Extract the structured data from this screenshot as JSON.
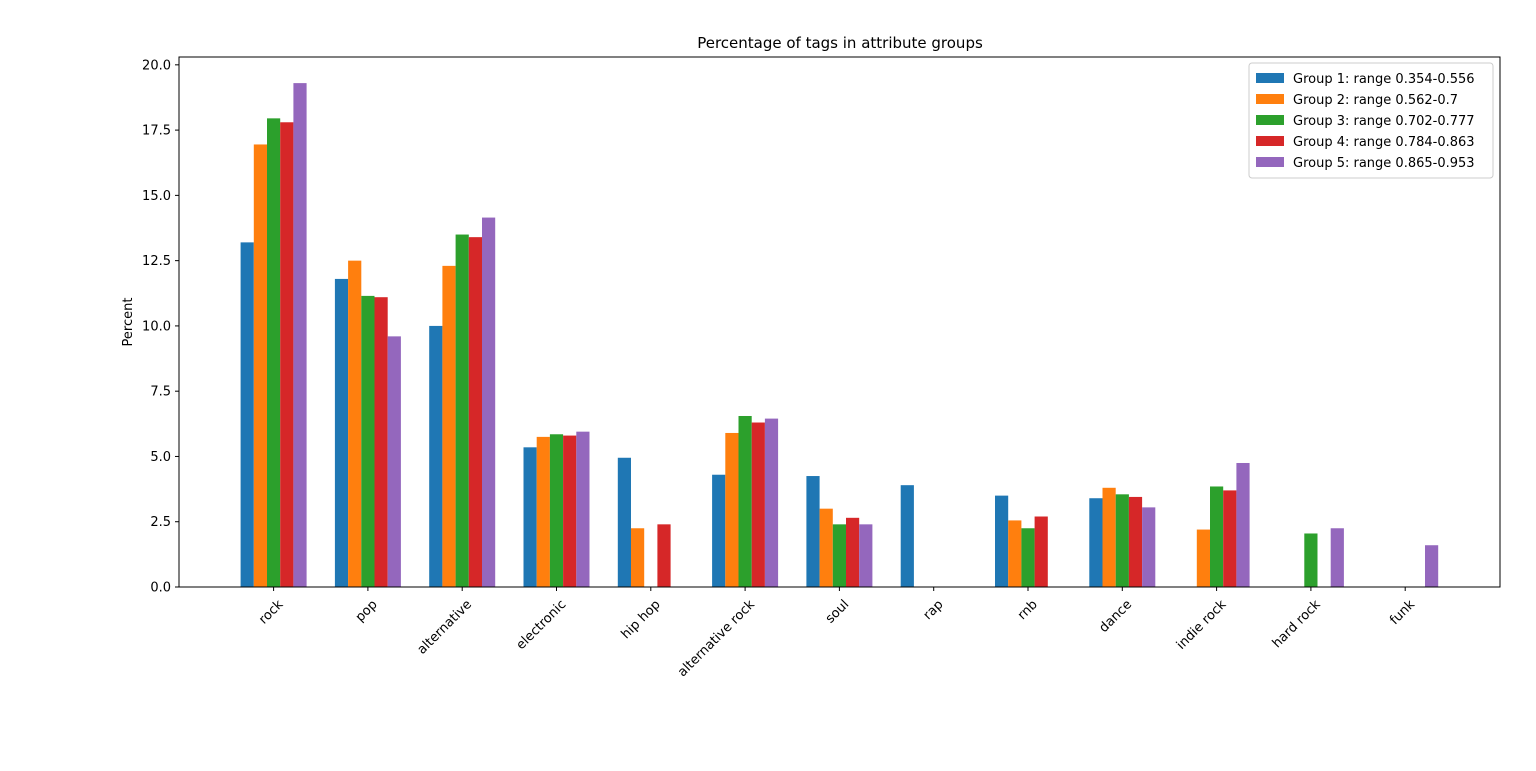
{
  "chart_data": {
    "type": "bar",
    "title": "Percentage of tags in attribute groups",
    "xlabel": "",
    "ylabel": "Percent",
    "ylim": [
      0,
      20.3
    ],
    "yticks": [
      "0.0",
      "2.5",
      "5.0",
      "7.5",
      "10.0",
      "12.5",
      "15.0",
      "17.5",
      "20.0"
    ],
    "categories": [
      "rock",
      "pop",
      "alternative",
      "electronic",
      "hip hop",
      "alternative rock",
      "soul",
      "rap",
      "rnb",
      "dance",
      "indie rock",
      "hard rock",
      "funk"
    ],
    "legend_position": "top-right",
    "grid": false,
    "series": [
      {
        "name": "Group 1: range 0.354-0.556",
        "color": "#1f77b4",
        "values": [
          13.2,
          11.8,
          10.0,
          5.35,
          4.95,
          4.3,
          4.25,
          3.9,
          3.5,
          3.4,
          0,
          0,
          0
        ]
      },
      {
        "name": "Group 2: range 0.562-0.7",
        "color": "#ff7f0e",
        "values": [
          16.95,
          12.5,
          12.3,
          5.75,
          2.25,
          5.9,
          3.0,
          0,
          2.55,
          3.8,
          2.2,
          0,
          0
        ]
      },
      {
        "name": "Group 3: range 0.702-0.777",
        "color": "#2ca02c",
        "values": [
          17.95,
          11.15,
          13.5,
          5.85,
          0,
          6.55,
          2.4,
          0,
          2.25,
          3.55,
          3.85,
          2.05,
          0
        ]
      },
      {
        "name": "Group 4: range 0.784-0.863",
        "color": "#d62728",
        "values": [
          17.8,
          11.1,
          13.4,
          5.8,
          2.4,
          6.3,
          2.65,
          0,
          2.7,
          3.45,
          3.7,
          0,
          0
        ]
      },
      {
        "name": "Group 5: range 0.865-0.953",
        "color": "#9467bd",
        "values": [
          19.3,
          9.6,
          14.15,
          5.95,
          0,
          6.45,
          2.4,
          0,
          0,
          3.05,
          4.75,
          2.25,
          1.6
        ]
      }
    ]
  }
}
